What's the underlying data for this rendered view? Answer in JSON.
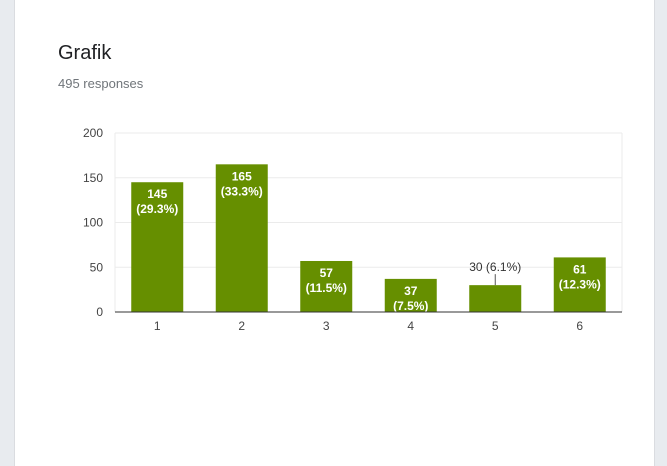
{
  "header": {
    "title": "Grafik",
    "responses": "495 responses"
  },
  "colors": {
    "bar": "#668f00",
    "grid": "#ebebeb",
    "axis": "#333333"
  },
  "chart_data": {
    "type": "bar",
    "title": "Grafik",
    "xlabel": "",
    "ylabel": "",
    "categories": [
      "1",
      "2",
      "3",
      "4",
      "5",
      "6"
    ],
    "values": [
      145,
      165,
      57,
      37,
      30,
      61
    ],
    "labels": [
      "145\n(29.3%)",
      "165\n(33.3%)",
      "57\n(11.5%)",
      "37\n(7.5%)",
      "30 (6.1%)",
      "61\n(12.3%)"
    ],
    "yticks": [
      0,
      50,
      100,
      150,
      200
    ],
    "ylim": [
      0,
      200
    ],
    "grid": true,
    "legend": "none"
  }
}
